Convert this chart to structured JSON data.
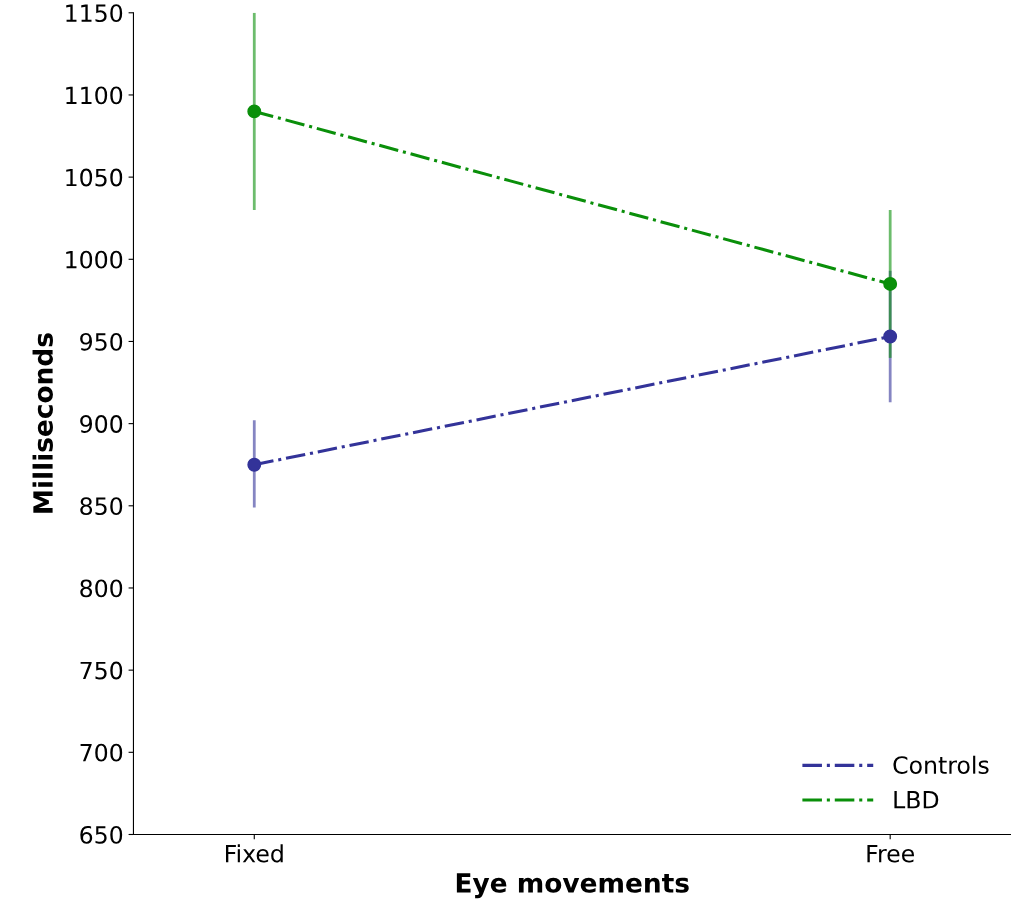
{
  "chart_data": {
    "type": "line",
    "xlabel": "Eye movements",
    "ylabel": "Milliseconds",
    "categories": [
      "Fixed",
      "Free"
    ],
    "series": [
      {
        "name": "Controls",
        "color": "#333399",
        "values": [
          875,
          953
        ],
        "errors": [
          [
            849,
            902
          ],
          [
            913,
            993
          ]
        ]
      },
      {
        "name": "LBD",
        "color": "#0a8f0a",
        "values": [
          1090,
          985
        ],
        "errors": [
          [
            1030,
            1150
          ],
          [
            940,
            1030
          ]
        ]
      }
    ],
    "ylim": [
      650,
      1150
    ],
    "yticks": [
      650,
      700,
      750,
      800,
      850,
      900,
      950,
      1000,
      1050,
      1100,
      1150
    ],
    "grid": false,
    "legend": "bottom right",
    "marker": "circle",
    "line_style": "dashed"
  }
}
